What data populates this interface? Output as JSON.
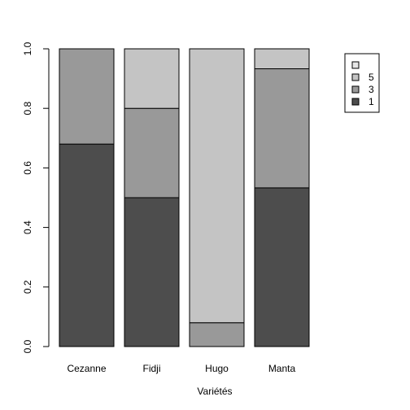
{
  "chart_data": {
    "type": "bar",
    "stacked": true,
    "categories": [
      "Cezanne",
      "Fidji",
      "Hugo",
      "Manta"
    ],
    "series": [
      {
        "name": "1",
        "color": "#4d4d4d",
        "values": [
          0.68,
          0.5,
          0.0,
          0.533
        ]
      },
      {
        "name": "3",
        "color": "#999999",
        "values": [
          0.32,
          0.3,
          0.08,
          0.4
        ]
      },
      {
        "name": "5",
        "color": "#c4c4c4",
        "values": [
          0.0,
          0.2,
          0.92,
          0.067
        ]
      }
    ],
    "legend_extra_entry": {
      "name": "",
      "color": "#e6e6e6"
    },
    "title": "",
    "xlabel": "Variétés",
    "ylabel": "",
    "ylim": [
      0,
      1
    ],
    "yticks": [
      "0.0",
      "0.2",
      "0.4",
      "0.6",
      "0.8",
      "1.0"
    ],
    "ytick_values": [
      0,
      0.2,
      0.4,
      0.6,
      0.8,
      1.0
    ],
    "grid": false,
    "legend_position": "top-right"
  }
}
